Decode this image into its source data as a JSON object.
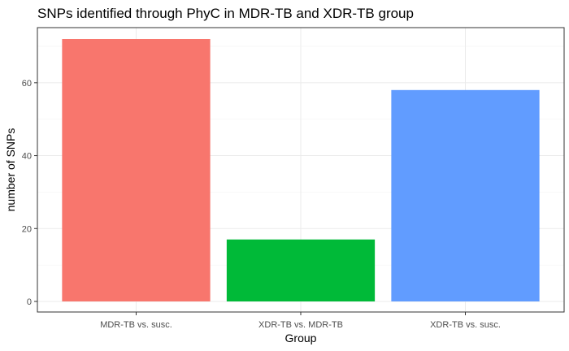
{
  "chart_data": {
    "type": "bar",
    "title": "SNPs identified through PhyC in MDR-TB and XDR-TB group",
    "xlabel": "Group",
    "ylabel": "number of SNPs",
    "categories": [
      "MDR-TB vs. susc.",
      "XDR-TB vs. MDR-TB",
      "XDR-TB vs. susc."
    ],
    "values": [
      72,
      17,
      58
    ],
    "colors": [
      "#F8766D",
      "#00BA38",
      "#619CFF"
    ],
    "ylim": [
      0,
      76
    ],
    "yticks": [
      0,
      20,
      40,
      60
    ],
    "grid": true,
    "legend": "none"
  }
}
